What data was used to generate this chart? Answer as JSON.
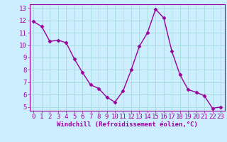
{
  "x": [
    0,
    1,
    2,
    3,
    4,
    5,
    6,
    7,
    8,
    9,
    10,
    11,
    12,
    13,
    14,
    15,
    16,
    17,
    18,
    19,
    20,
    21,
    22,
    23
  ],
  "y": [
    11.9,
    11.5,
    10.3,
    10.4,
    10.2,
    8.9,
    7.8,
    6.8,
    6.5,
    5.8,
    5.4,
    6.3,
    8.0,
    9.9,
    11.0,
    12.9,
    12.2,
    9.5,
    7.6,
    6.4,
    6.2,
    5.9,
    4.9,
    5.0
  ],
  "line_color": "#990099",
  "marker": "D",
  "marker_size": 2.5,
  "bg_color": "#cceeff",
  "grid_color": "#aadddd",
  "xlabel": "Windchill (Refroidissement éolien,°C)",
  "xlim_min": -0.5,
  "xlim_max": 23.5,
  "ylim_min": 4.7,
  "ylim_max": 13.3,
  "yticks": [
    5,
    6,
    7,
    8,
    9,
    10,
    11,
    12,
    13
  ],
  "xticks": [
    0,
    1,
    2,
    3,
    4,
    5,
    6,
    7,
    8,
    9,
    10,
    11,
    12,
    13,
    14,
    15,
    16,
    17,
    18,
    19,
    20,
    21,
    22,
    23
  ],
  "xlabel_fontsize": 6.5,
  "tick_fontsize": 6.5,
  "line_width": 1.0
}
